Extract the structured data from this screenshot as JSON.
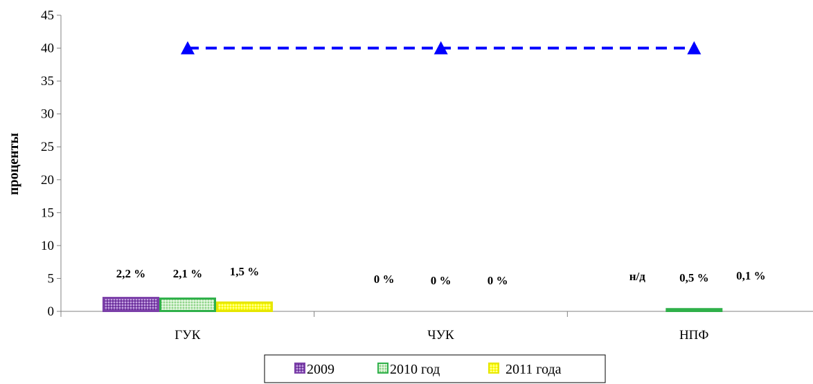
{
  "chart_data": {
    "type": "bar",
    "ylabel": "проценты",
    "ylim": [
      0,
      45
    ],
    "yticks": [
      0,
      5,
      10,
      15,
      20,
      25,
      30,
      35,
      40,
      45
    ],
    "categories": [
      "ГУК",
      "ЧУК",
      "НПФ"
    ],
    "series": [
      {
        "name": "2009",
        "type": "bar",
        "color": "#7b3fa8",
        "values": [
          2.2,
          0,
          null
        ],
        "labels": [
          "2,2 %",
          "0 %",
          "н/д"
        ]
      },
      {
        "name": "2010 год",
        "type": "bar",
        "color": "#2fb04a",
        "values": [
          2.1,
          0,
          0.5
        ],
        "labels": [
          "2,1 %",
          "0 %",
          "0,5 %"
        ]
      },
      {
        "name": "2011 года",
        "type": "bar",
        "color": "#ffff00",
        "values": [
          1.5,
          0,
          0.1
        ],
        "labels": [
          "1,5 %",
          "0 %",
          "0,1 %"
        ]
      },
      {
        "type": "line",
        "style": "dashed",
        "marker": "triangle",
        "color": "#0000ff",
        "values": [
          40,
          40,
          40
        ]
      }
    ],
    "legend_position": "bottom",
    "grid": false
  }
}
